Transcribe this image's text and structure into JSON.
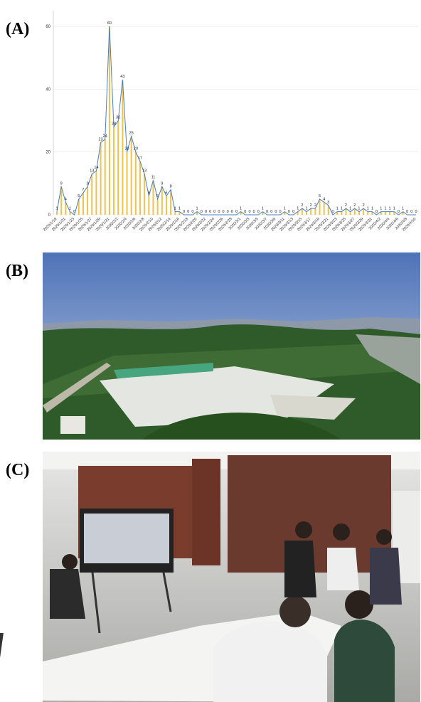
{
  "panels": [
    "(A)",
    "(B)",
    "(C)"
  ],
  "chart_data": {
    "type": "combo",
    "categories": [
      "2020/1/19",
      null,
      "2020/1/21",
      null,
      "2020/1/23",
      null,
      "2020/1/25",
      null,
      "2020/1/27",
      null,
      "2020/1/29",
      null,
      "2020/1/31",
      null,
      "2020/2/2",
      null,
      "2020/2/4",
      null,
      "2020/2/6",
      null,
      "2020/2/8",
      null,
      "2020/2/10",
      null,
      "2020/2/12",
      null,
      "2020/2/14",
      null,
      "2020/2/16",
      null,
      "2020/2/18",
      null,
      "2020/2/20",
      null,
      "2020/2/22",
      null,
      "2020/2/24",
      null,
      "2020/2/26",
      null,
      "2020/2/28",
      null,
      "2020/3/1",
      null,
      "2020/3/3",
      null,
      "2020/3/5",
      null,
      "2020/3/7",
      null,
      "2020/3/9",
      null,
      "2020/3/11",
      null,
      "2020/3/13",
      null,
      "2020/3/15",
      null,
      "2020/3/17",
      null,
      "2020/3/19",
      null,
      "2020/3/21",
      null,
      "2020/3/23",
      null,
      "2020/3/25",
      null,
      "2020/3/27",
      null,
      "2020/3/29",
      null,
      "2020/3/31",
      null,
      "2020/4/2",
      null,
      "2020/4/4",
      null,
      "2020/4/6",
      null,
      "2020/4/8",
      null,
      "2020/4/10"
    ],
    "values": [
      1,
      9,
      4,
      1,
      0,
      5,
      7,
      9,
      13,
      14,
      23,
      24,
      60,
      28,
      30,
      43,
      20,
      25,
      20,
      17,
      13,
      6,
      11,
      5,
      9,
      6,
      8,
      1,
      1,
      0,
      0,
      0,
      1,
      0,
      0,
      0,
      0,
      0,
      0,
      0,
      0,
      0,
      1,
      0,
      0,
      0,
      0,
      1,
      0,
      0,
      0,
      0,
      1,
      0,
      0,
      1,
      2,
      1,
      2,
      2,
      5,
      4,
      3,
      0,
      1,
      1,
      2,
      1,
      2,
      1,
      2,
      1,
      1,
      0,
      1,
      1,
      1,
      1,
      0,
      1,
      0,
      0,
      0
    ],
    "color": "#4a7fc1",
    "bar_color": "#f0c24c",
    "ylim": [
      0,
      65
    ],
    "yticks": [
      0,
      20,
      40,
      60
    ],
    "grid": true
  }
}
